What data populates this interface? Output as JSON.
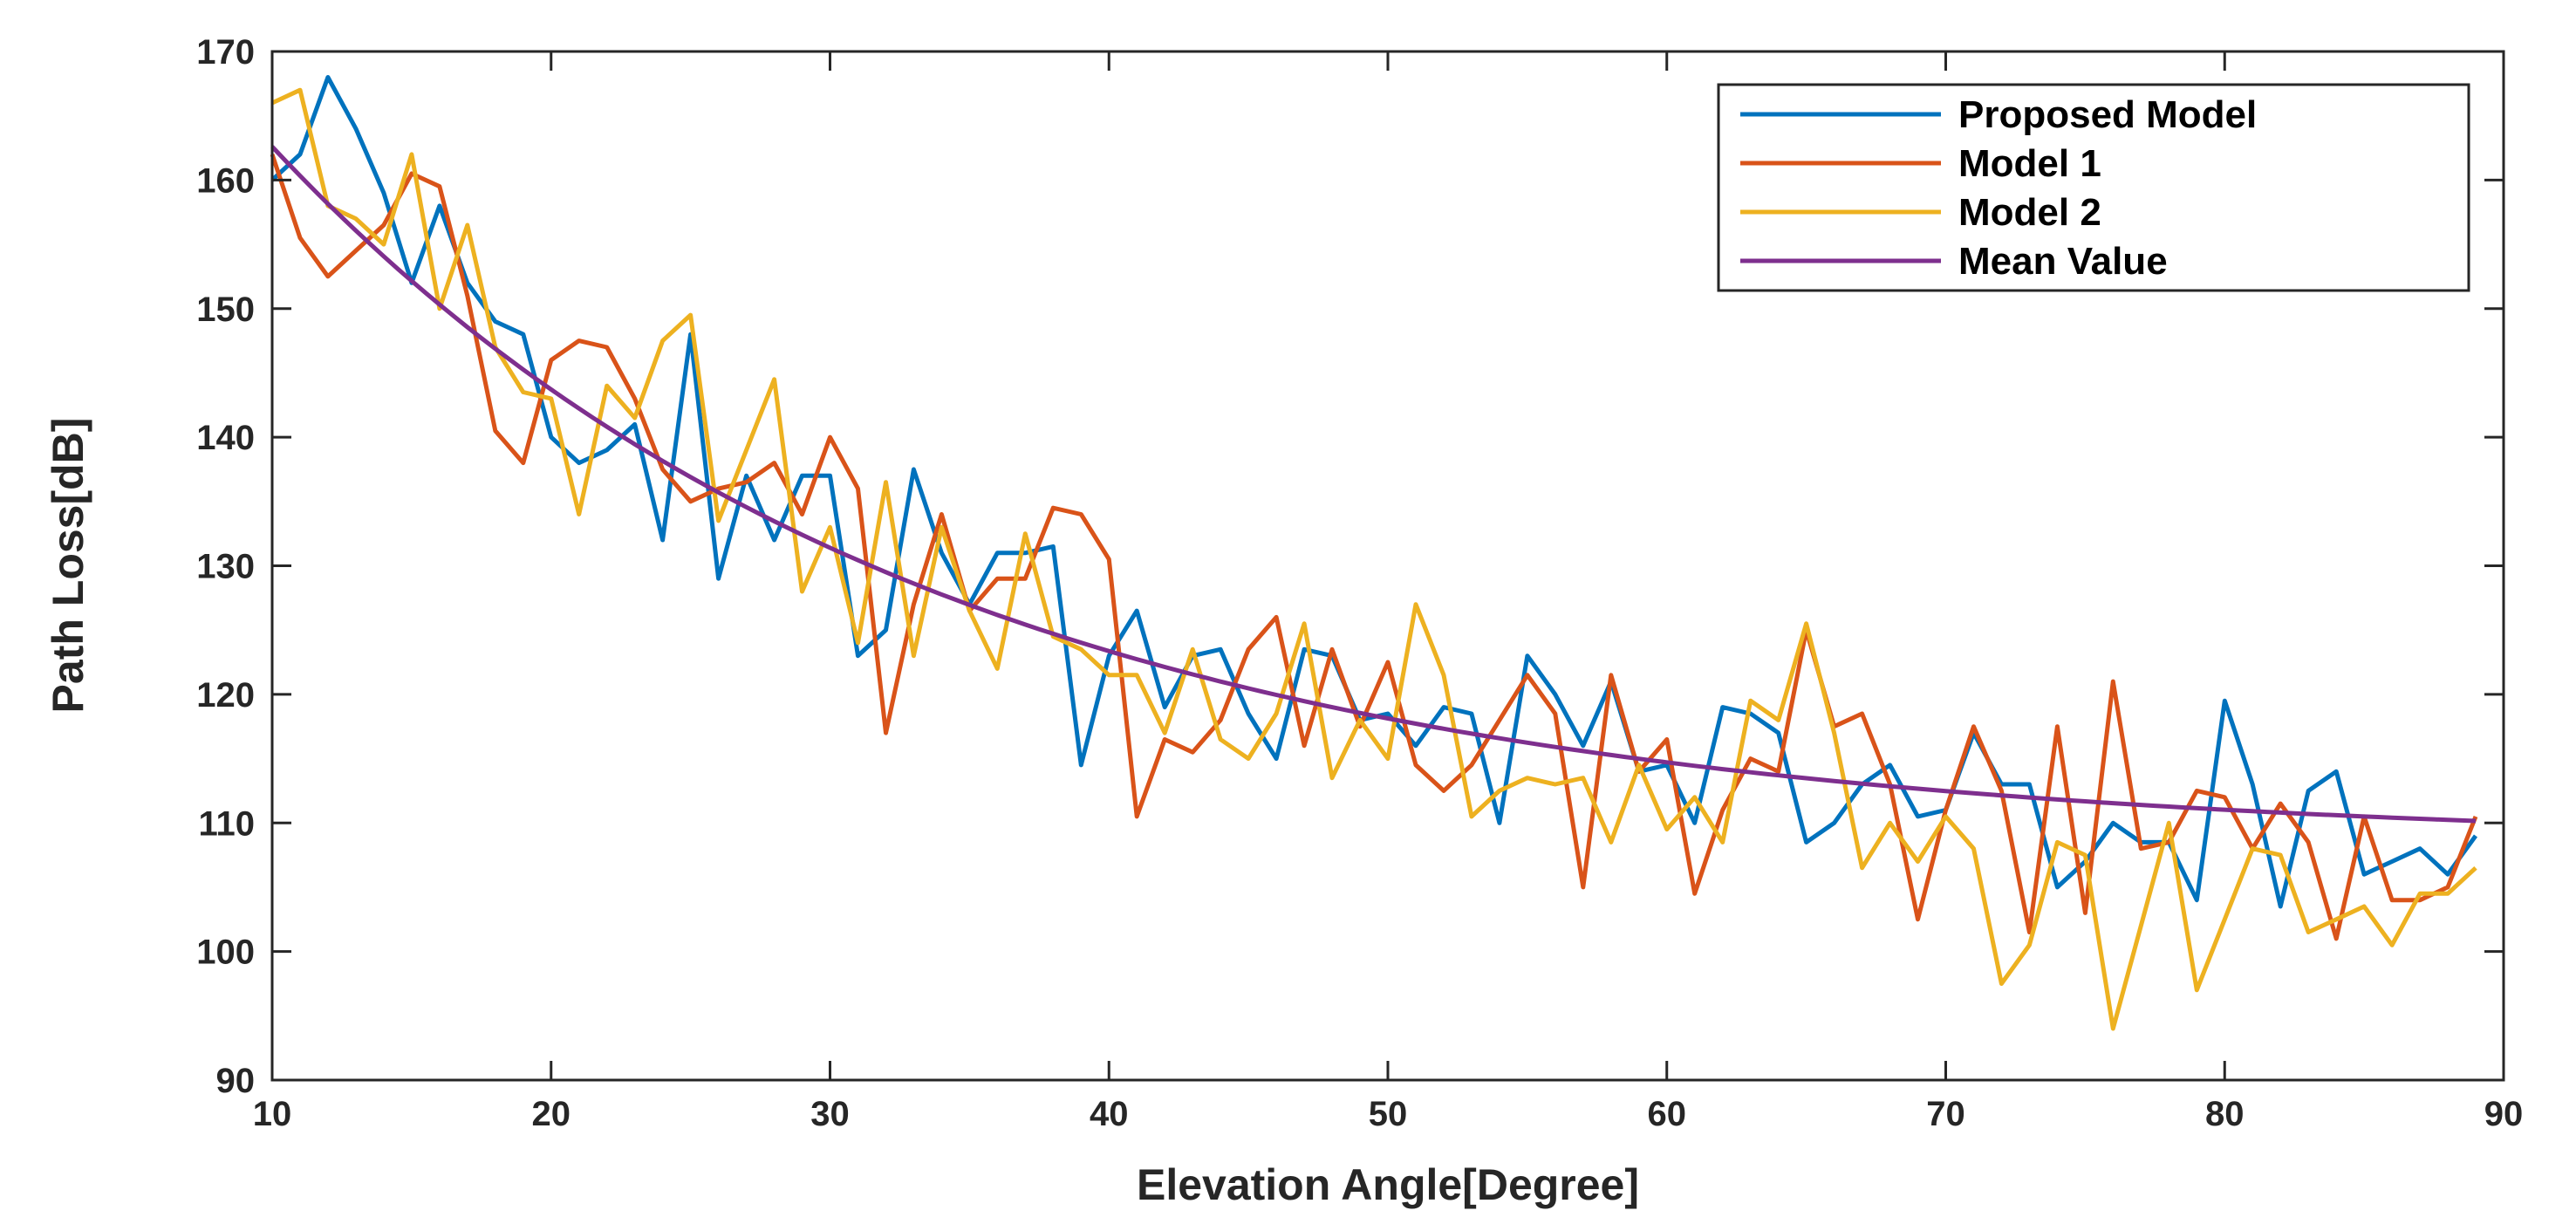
{
  "chart_data": {
    "type": "line",
    "title": "",
    "xlabel": "Elevation Angle[Degree]",
    "ylabel": "Path Loss[dB]",
    "xlim": [
      10,
      90
    ],
    "ylim": [
      90,
      170
    ],
    "xticks": [
      10,
      20,
      30,
      40,
      50,
      60,
      70,
      80,
      90
    ],
    "yticks": [
      90,
      100,
      110,
      120,
      130,
      140,
      150,
      160,
      170
    ],
    "grid": false,
    "legend_position": "top-right",
    "x": [
      10,
      11,
      12,
      13,
      14,
      15,
      16,
      17,
      18,
      19,
      20,
      21,
      22,
      23,
      24,
      25,
      26,
      27,
      28,
      29,
      30,
      31,
      32,
      33,
      34,
      35,
      36,
      37,
      38,
      39,
      40,
      41,
      42,
      43,
      44,
      45,
      46,
      47,
      48,
      49,
      50,
      51,
      52,
      53,
      54,
      55,
      56,
      57,
      58,
      59,
      60,
      61,
      62,
      63,
      64,
      65,
      66,
      67,
      68,
      69,
      70,
      71,
      72,
      73,
      74,
      75,
      76,
      77,
      78,
      79,
      80,
      81,
      82,
      83,
      84,
      85,
      86,
      87,
      88,
      89
    ],
    "series": [
      {
        "name": "Proposed Model",
        "color": "#0072BD",
        "values": [
          160,
          162,
          168,
          164,
          159,
          152,
          158,
          152,
          149,
          148,
          140,
          138,
          139,
          141,
          132,
          148,
          129,
          137,
          132,
          137,
          137,
          123,
          125,
          137.5,
          131,
          127,
          131,
          131,
          131.5,
          114.5,
          123,
          126.5,
          119,
          123,
          123.5,
          118.5,
          115,
          123.5,
          123,
          118,
          118.5,
          116,
          119,
          118.5,
          110,
          123,
          120,
          116,
          121,
          114,
          114.5,
          110,
          119,
          118.5,
          117,
          108.5,
          110,
          113,
          114.5,
          110.5,
          111,
          117,
          113,
          113,
          105,
          107,
          110,
          108.5,
          108.5,
          104,
          119.5,
          113,
          103.5,
          112.5,
          114,
          106,
          107,
          108,
          106,
          109
        ]
      },
      {
        "name": "Model 1",
        "color": "#D95319",
        "values": [
          162,
          155.5,
          152.5,
          154.5,
          156.5,
          160.5,
          159.5,
          151,
          140.5,
          138,
          146,
          147.5,
          147,
          143,
          137.5,
          135,
          136,
          136.5,
          138,
          134,
          140,
          136,
          117,
          127,
          134,
          126.5,
          129,
          129,
          134.5,
          134,
          130.5,
          110.5,
          116.5,
          115.5,
          118,
          123.5,
          126,
          116,
          123.5,
          117.5,
          122.5,
          114.5,
          112.5,
          114.5,
          118,
          121.5,
          118.5,
          105,
          121.5,
          114,
          116.5,
          104.5,
          111,
          115,
          114,
          125,
          117.5,
          118.5,
          113,
          102.5,
          111,
          117.5,
          112.5,
          101.5,
          117.5,
          103,
          121,
          108,
          108.5,
          112.5,
          112,
          108,
          111.5,
          108.5,
          101,
          110.5,
          104,
          104,
          105,
          110.5
        ]
      },
      {
        "name": "Model 2",
        "color": "#EDB120",
        "values": [
          166,
          167,
          158,
          157,
          155,
          162,
          150,
          156.5,
          147,
          143.5,
          143,
          134,
          144,
          141.5,
          147.5,
          149.5,
          133.5,
          139,
          144.5,
          128,
          133,
          124,
          136.5,
          123,
          133,
          126.5,
          122,
          132.5,
          124.5,
          123.5,
          121.5,
          121.5,
          117,
          123.5,
          116.5,
          115,
          118.5,
          125.5,
          113.5,
          118,
          115,
          127,
          121.5,
          110.5,
          112.5,
          113.5,
          113,
          113.5,
          108.5,
          114.5,
          109.5,
          112,
          108.5,
          119.5,
          118,
          125.5,
          117,
          106.5,
          110,
          107,
          110.5,
          108,
          97.5,
          100.5,
          108.5,
          107.5,
          94,
          102,
          110,
          97,
          102.5,
          108,
          107.5,
          101.5,
          102.5,
          103.5,
          100.5,
          104.5,
          104.5,
          106.5
        ]
      },
      {
        "name": "Mean Value",
        "color": "#7E2F8E",
        "formula": "108.3 + 54.3 * exp(-(x-10)/23.4)"
      }
    ]
  }
}
